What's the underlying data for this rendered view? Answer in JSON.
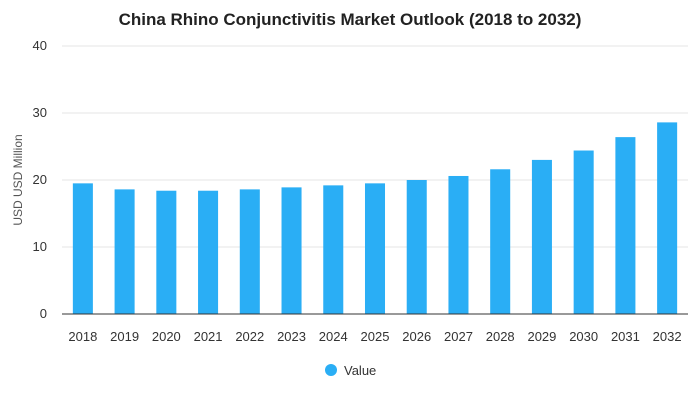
{
  "chart_data": {
    "type": "bar",
    "title": "China Rhino Conjunctivitis Market Outlook (2018 to 2032)",
    "xlabel": "",
    "ylabel": "USD USD Million",
    "categories": [
      "2018",
      "2019",
      "2020",
      "2021",
      "2022",
      "2023",
      "2024",
      "2025",
      "2026",
      "2027",
      "2028",
      "2029",
      "2030",
      "2031",
      "2032"
    ],
    "series": [
      {
        "name": "Value",
        "color": "#2aaef5",
        "values": [
          19.5,
          18.6,
          18.4,
          18.4,
          18.6,
          18.9,
          19.2,
          19.5,
          20.0,
          20.6,
          21.6,
          23.0,
          24.4,
          26.4,
          28.6
        ]
      }
    ],
    "ylim": [
      0,
      40
    ],
    "yticks": [
      0,
      10,
      20,
      30,
      40
    ],
    "grid": true,
    "legend": "bottom-center"
  }
}
